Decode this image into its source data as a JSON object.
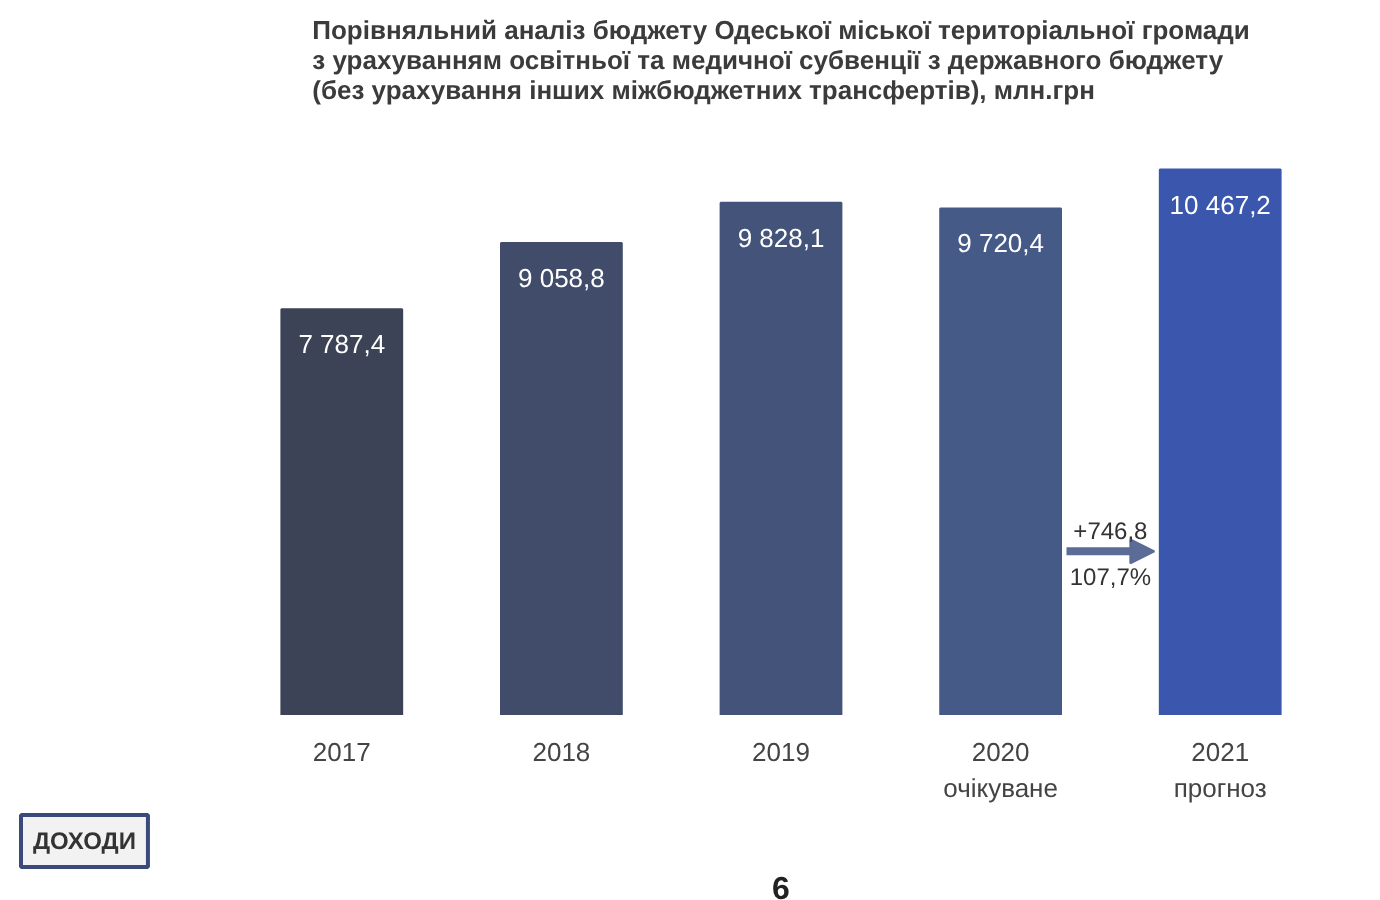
{
  "chart_data": {
    "type": "bar",
    "title": "Порівняльний аналіз бюджету Одеської міської територіальної громади з урахуванням освітньої та медичної субвенції з державного бюджету (без урахування інших міжбюджетних трансфертів), млн.грн",
    "categories": [
      "2017",
      "2018",
      "2019",
      "2020\nочікуване",
      "2021\nпрогноз"
    ],
    "values": [
      7787.4,
      9058.8,
      9828.1,
      9720.4,
      10467.2
    ],
    "colors": [
      "#3c4356",
      "#414c6a",
      "#44537a",
      "#465a88",
      "#3a57ad"
    ],
    "value_labels": [
      "7 787,4",
      "9 058,8",
      "9 828,1",
      "9 720,4",
      "10 467,2"
    ],
    "annotations": [
      "+746,8",
      "107,7%",
      "ДОХОДИ",
      "6"
    ]
  }
}
